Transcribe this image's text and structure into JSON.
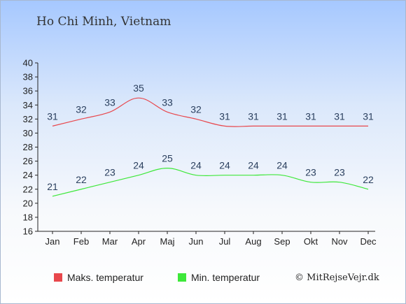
{
  "page": {
    "title": "Ho Chi Minh, Vietnam",
    "credit": "© MitRejseVejr.dk"
  },
  "chart_data": {
    "type": "line",
    "title": "Ho Chi Minh, Vietnam",
    "categories": [
      "Jan",
      "Feb",
      "Mar",
      "Apr",
      "Maj",
      "Jun",
      "Jul",
      "Aug",
      "Sep",
      "Okt",
      "Nov",
      "Dec"
    ],
    "ylim": [
      16,
      40
    ],
    "yticks": [
      16,
      18,
      20,
      22,
      24,
      26,
      28,
      30,
      32,
      34,
      36,
      38,
      40
    ],
    "grid": false,
    "legend_position": "bottom",
    "series": [
      {
        "name": "Maks. temperatur",
        "color": "#e8474c",
        "values": [
          31,
          32,
          33,
          35,
          33,
          32,
          31,
          31,
          31,
          31,
          31,
          31
        ]
      },
      {
        "name": "Min. temperatur",
        "color": "#3ee83a",
        "values": [
          21,
          22,
          23,
          24,
          25,
          24,
          24,
          24,
          24,
          23,
          23,
          22
        ]
      }
    ]
  }
}
